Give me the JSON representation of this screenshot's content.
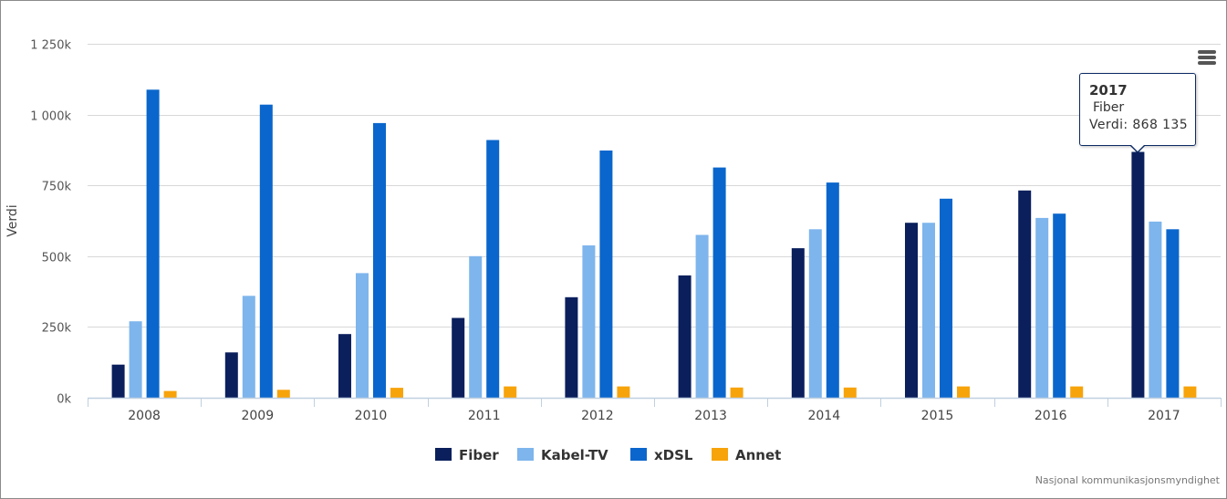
{
  "chart_data": {
    "type": "bar",
    "title": "",
    "xlabel": "",
    "ylabel": "Verdi",
    "ylim": [
      0,
      1250000
    ],
    "yticks": [
      {
        "value": 0,
        "label": "0k"
      },
      {
        "value": 250000,
        "label": "250k"
      },
      {
        "value": 500000,
        "label": "500k"
      },
      {
        "value": 750000,
        "label": "750k"
      },
      {
        "value": 1000000,
        "label": "1 000k"
      },
      {
        "value": 1250000,
        "label": "1 250k"
      }
    ],
    "grid": true,
    "legend_position": "bottom-center",
    "categories": [
      "2008",
      "2009",
      "2010",
      "2011",
      "2012",
      "2013",
      "2014",
      "2015",
      "2016",
      "2017"
    ],
    "series": [
      {
        "name": "Fiber",
        "color": "#0a1f5c",
        "values": [
          117000,
          160000,
          225000,
          282000,
          355000,
          432000,
          528000,
          618000,
          732000,
          868135
        ]
      },
      {
        "name": "Kabel-TV",
        "color": "#7eb5ec",
        "values": [
          270000,
          360000,
          440000,
          500000,
          538000,
          575000,
          595000,
          618000,
          635000,
          622000
        ]
      },
      {
        "name": "xDSL",
        "color": "#0a66cc",
        "values": [
          1088000,
          1035000,
          970000,
          910000,
          873000,
          813000,
          760000,
          703000,
          650000,
          595000
        ]
      },
      {
        "name": "Annet",
        "color": "#f7a30a",
        "values": [
          24000,
          28000,
          35000,
          40000,
          40000,
          36000,
          36000,
          40000,
          40000,
          40000
        ]
      }
    ]
  },
  "tooltip": {
    "title": "2017",
    "series": "Fiber",
    "value": "Verdi: 868 135"
  },
  "menu": {
    "icon": "hamburger-menu-icon"
  },
  "credit": "Nasjonal kommunikasjonsmyndighet"
}
